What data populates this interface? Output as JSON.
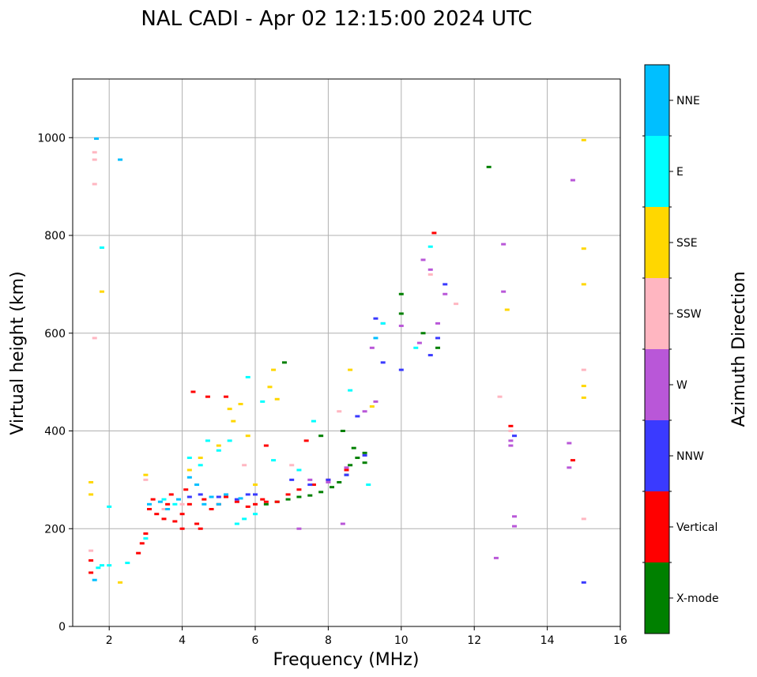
{
  "chart_data": {
    "type": "scatter",
    "title": "NAL CADI - Apr 02 12:15:00 2024 UTC",
    "xlabel": "Frequency (MHz)",
    "ylabel": "Virtual height (km)",
    "xlim": [
      1,
      16
    ],
    "ylim": [
      0,
      1120
    ],
    "xticks": [
      2,
      4,
      6,
      8,
      10,
      12,
      14,
      16
    ],
    "yticks": [
      0,
      200,
      400,
      600,
      800,
      1000
    ],
    "grid": true,
    "colorbar": {
      "label": "Azimuth Direction",
      "position": "right",
      "categories": [
        {
          "name": "X-mode",
          "color": "#008000"
        },
        {
          "name": "Vertical",
          "color": "#ff0000"
        },
        {
          "name": "NNW",
          "color": "#3a3aff"
        },
        {
          "name": "W",
          "color": "#b957d8"
        },
        {
          "name": "SSW",
          "color": "#ffb6c1"
        },
        {
          "name": "SSE",
          "color": "#ffd700"
        },
        {
          "name": "E",
          "color": "#00ffff"
        },
        {
          "name": "NNE",
          "color": "#00bfff"
        }
      ]
    },
    "series": [
      {
        "name": "X-mode",
        "points": [
          [
            6.3,
            250
          ],
          [
            6.6,
            255
          ],
          [
            6.9,
            260
          ],
          [
            7.2,
            265
          ],
          [
            7.5,
            268
          ],
          [
            7.8,
            275
          ],
          [
            8.1,
            285
          ],
          [
            8.3,
            295
          ],
          [
            8.5,
            310
          ],
          [
            8.6,
            330
          ],
          [
            8.8,
            345
          ],
          [
            9.0,
            355
          ],
          [
            9.0,
            335
          ],
          [
            8.7,
            365
          ],
          [
            10.0,
            680
          ],
          [
            10.0,
            640
          ],
          [
            10.6,
            600
          ],
          [
            11.0,
            570
          ],
          [
            12.4,
            940
          ],
          [
            7.8,
            390
          ],
          [
            8.4,
            400
          ],
          [
            6.8,
            540
          ]
        ]
      },
      {
        "name": "Vertical",
        "points": [
          [
            1.5,
            135
          ],
          [
            1.5,
            110
          ],
          [
            2.8,
            150
          ],
          [
            2.9,
            170
          ],
          [
            3.0,
            190
          ],
          [
            3.1,
            240
          ],
          [
            3.2,
            260
          ],
          [
            3.3,
            230
          ],
          [
            3.5,
            220
          ],
          [
            3.6,
            250
          ],
          [
            3.8,
            215
          ],
          [
            4.0,
            230
          ],
          [
            4.2,
            250
          ],
          [
            4.4,
            210
          ],
          [
            4.6,
            260
          ],
          [
            4.8,
            240
          ],
          [
            5.0,
            250
          ],
          [
            5.2,
            265
          ],
          [
            5.5,
            255
          ],
          [
            5.8,
            245
          ],
          [
            6.0,
            250
          ],
          [
            6.3,
            255
          ],
          [
            6.6,
            255
          ],
          [
            6.9,
            270
          ],
          [
            7.2,
            280
          ],
          [
            7.6,
            290
          ],
          [
            8.0,
            300
          ],
          [
            8.5,
            320
          ],
          [
            10.9,
            805
          ],
          [
            13.0,
            410
          ],
          [
            14.7,
            340
          ],
          [
            4.3,
            480
          ],
          [
            4.7,
            470
          ],
          [
            5.2,
            470
          ],
          [
            4.0,
            200
          ],
          [
            4.5,
            200
          ],
          [
            6.2,
            260
          ],
          [
            3.7,
            270
          ],
          [
            4.1,
            280
          ],
          [
            7.4,
            380
          ],
          [
            6.3,
            370
          ]
        ]
      },
      {
        "name": "NNW",
        "points": [
          [
            4.5,
            270
          ],
          [
            5.0,
            265
          ],
          [
            5.5,
            260
          ],
          [
            6.0,
            270
          ],
          [
            7.0,
            300
          ],
          [
            7.5,
            290
          ],
          [
            8.0,
            300
          ],
          [
            8.5,
            310
          ],
          [
            9.0,
            350
          ],
          [
            9.3,
            630
          ],
          [
            9.5,
            540
          ],
          [
            10.0,
            525
          ],
          [
            10.8,
            555
          ],
          [
            11.0,
            590
          ],
          [
            13.1,
            390
          ],
          [
            15.0,
            90
          ],
          [
            4.2,
            265
          ],
          [
            5.8,
            270
          ],
          [
            8.8,
            430
          ],
          [
            11.2,
            700
          ]
        ]
      },
      {
        "name": "W",
        "points": [
          [
            7.5,
            300
          ],
          [
            8.0,
            295
          ],
          [
            8.5,
            325
          ],
          [
            9.0,
            440
          ],
          [
            9.2,
            570
          ],
          [
            9.5,
            620
          ],
          [
            10.0,
            615
          ],
          [
            10.5,
            580
          ],
          [
            10.6,
            750
          ],
          [
            10.8,
            730
          ],
          [
            11.0,
            620
          ],
          [
            11.2,
            680
          ],
          [
            12.8,
            782
          ],
          [
            12.8,
            685
          ],
          [
            13.0,
            380
          ],
          [
            13.0,
            370
          ],
          [
            13.1,
            225
          ],
          [
            13.1,
            205
          ],
          [
            14.7,
            913
          ],
          [
            14.6,
            375
          ],
          [
            14.6,
            325
          ],
          [
            12.6,
            140
          ],
          [
            8.4,
            210
          ],
          [
            7.2,
            200
          ],
          [
            9.3,
            460
          ]
        ]
      },
      {
        "name": "SSW",
        "points": [
          [
            1.6,
            970
          ],
          [
            1.6,
            955
          ],
          [
            1.6,
            905
          ],
          [
            1.6,
            590
          ],
          [
            1.5,
            155
          ],
          [
            3.0,
            300
          ],
          [
            3.5,
            240
          ],
          [
            4.0,
            250
          ],
          [
            7.0,
            330
          ],
          [
            8.3,
            440
          ],
          [
            10.8,
            720
          ],
          [
            11.5,
            660
          ],
          [
            12.7,
            470
          ],
          [
            15.0,
            525
          ],
          [
            15.0,
            220
          ],
          [
            13.0,
            400
          ],
          [
            5.7,
            330
          ]
        ]
      },
      {
        "name": "SSE",
        "points": [
          [
            1.5,
            295
          ],
          [
            1.5,
            270
          ],
          [
            1.8,
            685
          ],
          [
            2.3,
            90
          ],
          [
            4.5,
            345
          ],
          [
            5.0,
            370
          ],
          [
            5.3,
            445
          ],
          [
            5.6,
            455
          ],
          [
            5.8,
            390
          ],
          [
            6.0,
            290
          ],
          [
            6.4,
            490
          ],
          [
            6.5,
            525
          ],
          [
            8.6,
            525
          ],
          [
            9.2,
            450
          ],
          [
            12.9,
            648
          ],
          [
            15.0,
            995
          ],
          [
            15.0,
            773
          ],
          [
            15.0,
            700
          ],
          [
            15.0,
            492
          ],
          [
            15.0,
            468
          ],
          [
            6.6,
            465
          ],
          [
            5.4,
            420
          ],
          [
            4.2,
            320
          ],
          [
            3.0,
            310
          ]
        ]
      },
      {
        "name": "E",
        "points": [
          [
            1.7,
            120
          ],
          [
            1.8,
            125
          ],
          [
            2.0,
            125
          ],
          [
            2.5,
            130
          ],
          [
            3.0,
            180
          ],
          [
            3.5,
            260
          ],
          [
            3.8,
            250
          ],
          [
            4.2,
            345
          ],
          [
            4.5,
            330
          ],
          [
            5.0,
            360
          ],
          [
            5.3,
            380
          ],
          [
            5.7,
            220
          ],
          [
            6.0,
            230
          ],
          [
            5.5,
            210
          ],
          [
            6.5,
            340
          ],
          [
            7.2,
            320
          ],
          [
            7.6,
            420
          ],
          [
            8.6,
            483
          ],
          [
            9.1,
            290
          ],
          [
            10.8,
            777
          ],
          [
            1.8,
            775
          ],
          [
            2.0,
            245
          ],
          [
            4.7,
            380
          ],
          [
            6.2,
            460
          ],
          [
            5.8,
            510
          ],
          [
            9.5,
            620
          ],
          [
            10.4,
            570
          ]
        ]
      },
      {
        "name": "NNE",
        "points": [
          [
            1.6,
            95
          ],
          [
            1.65,
            998
          ],
          [
            2.3,
            955
          ],
          [
            3.4,
            255
          ],
          [
            3.9,
            260
          ],
          [
            4.2,
            305
          ],
          [
            4.4,
            290
          ],
          [
            4.8,
            265
          ],
          [
            5.2,
            270
          ],
          [
            5.6,
            262
          ],
          [
            3.1,
            250
          ],
          [
            3.6,
            240
          ],
          [
            4.6,
            250
          ],
          [
            9.3,
            590
          ],
          [
            5.0,
            250
          ]
        ]
      }
    ]
  }
}
